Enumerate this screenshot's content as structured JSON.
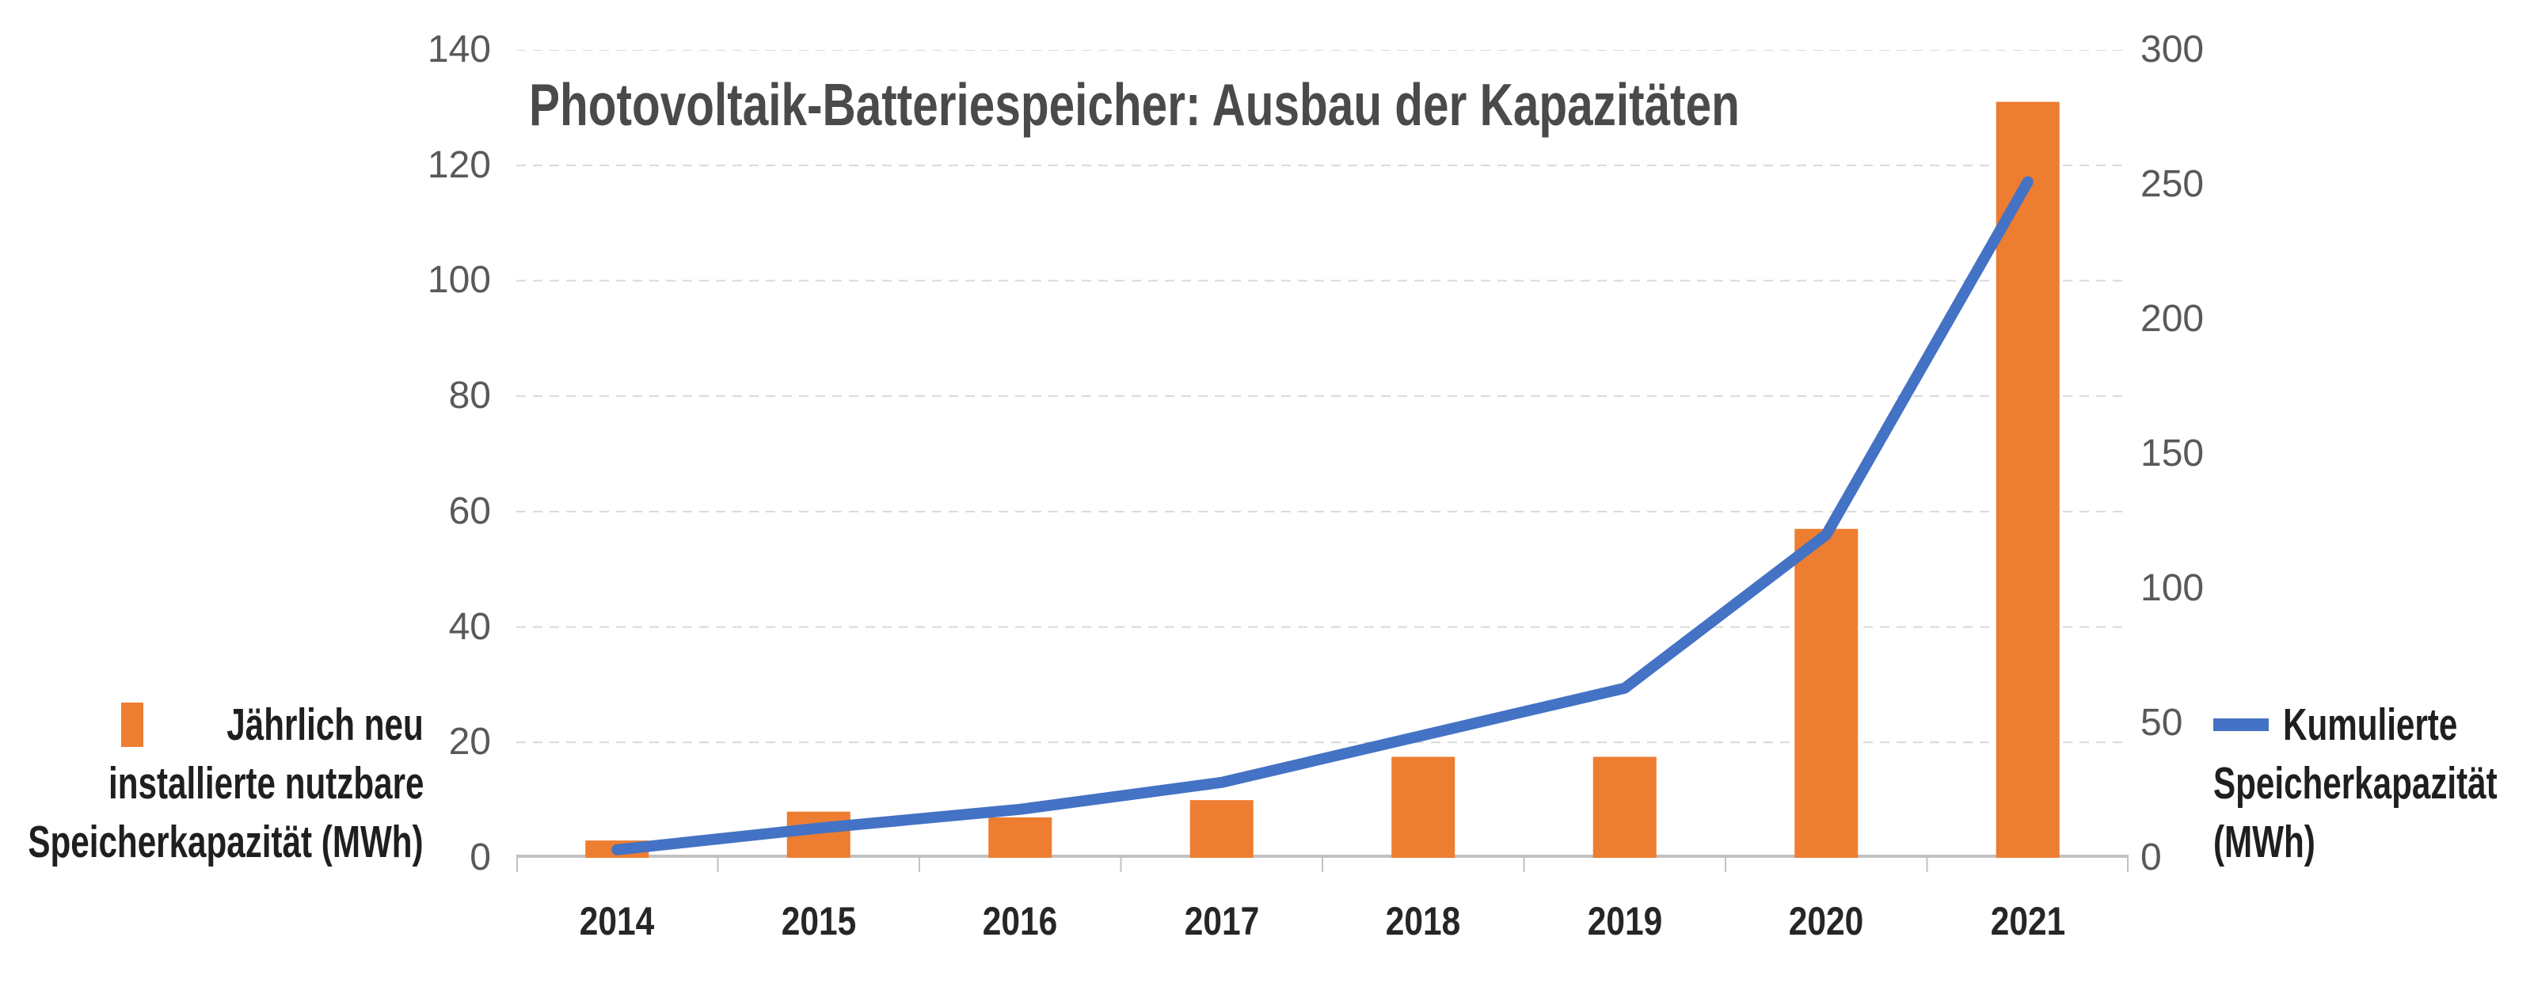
{
  "title": "Photovoltaik-Batteriespeicher: Ausbau der Kapazitäten",
  "colors": {
    "bar_orange": "#ED7D31",
    "line_blue": "#4472C4",
    "gridline": "#D9D9D9",
    "axis_line": "#C2C2C2",
    "title_text": "#4A4A4A",
    "tick_text": "#595959",
    "year_text": "#262626",
    "legend_text": "#1F1F1F",
    "background": "#FFFFFF"
  },
  "legend_left": {
    "swatch": "bar-swatch",
    "lines": [
      "Jährlich neu",
      "installierte nutzbare",
      "Speicherkapazität (MWh)"
    ]
  },
  "legend_right": {
    "swatch": "line-swatch",
    "lines": [
      "Kumulierte",
      "Speicherkapazität",
      "(MWh)"
    ]
  },
  "chart_data": {
    "type": "combo bar+line, dual axis",
    "title": "Photovoltaik-Batteriespeicher: Ausbau der Kapazitäten",
    "categories": [
      "2014",
      "2015",
      "2016",
      "2017",
      "2018",
      "2019",
      "2020",
      "2021"
    ],
    "series": [
      {
        "name": "Jährlich neu installierte nutzbare Speicherkapazität (MWh)",
        "type": "bar",
        "axis": "left",
        "color": "#ED7D31",
        "values": [
          3,
          8,
          7,
          10,
          17.5,
          17.5,
          57,
          131
        ]
      },
      {
        "name": "Kumulierte Speicherkapazität (MWh)",
        "type": "line",
        "axis": "right",
        "color": "#4472C4",
        "values": [
          3,
          11,
          18,
          28,
          45.5,
          63,
          120,
          251
        ]
      }
    ],
    "y_left": {
      "min": 0,
      "max": 140,
      "ticks": [
        0,
        20,
        40,
        60,
        80,
        100,
        120,
        140
      ]
    },
    "y_right": {
      "min": 0,
      "max": 300,
      "ticks": [
        0,
        50,
        100,
        150,
        200,
        250,
        300
      ]
    },
    "grid": "horizontal dashed lines at left-axis steps of 20, gridlines off vertically",
    "legend_position": "bar legend lower-left outside plot, line legend lower-right outside plot"
  }
}
